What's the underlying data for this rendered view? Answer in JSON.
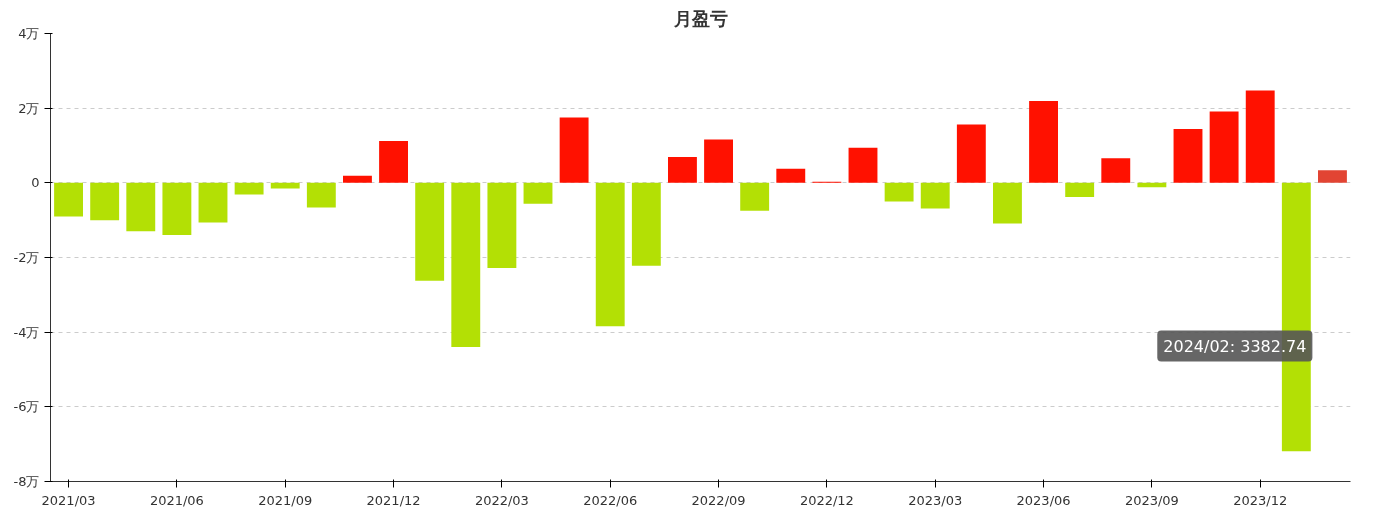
{
  "chart_data": {
    "type": "bar",
    "title": "月盈亏",
    "categories": [
      "2021/03",
      null,
      null,
      "2021/06",
      null,
      null,
      "2021/09",
      null,
      null,
      "2021/12",
      null,
      null,
      "2022/03",
      null,
      null,
      "2022/06",
      null,
      null,
      "2022/09",
      null,
      null,
      "2022/12",
      null,
      null,
      "2023/03",
      null,
      null,
      "2023/06",
      null,
      null,
      "2023/09",
      null,
      null,
      "2023/12",
      null,
      null
    ],
    "values": [
      -0.9,
      -1.0,
      -1.3,
      -1.4,
      -1.06,
      -0.31,
      -0.15,
      -0.66,
      0.19,
      1.12,
      -2.62,
      -4.4,
      -2.28,
      -0.56,
      1.75,
      -3.84,
      -2.22,
      0.69,
      1.16,
      -0.75,
      0.38,
      0.03,
      0.94,
      -0.5,
      -0.69,
      1.56,
      -1.09,
      2.19,
      -0.38,
      0.66,
      -0.12,
      1.44,
      1.91,
      2.47,
      -7.19,
      0.34
    ],
    "colors": [
      "#b3e005",
      "#b3e005",
      "#b3e005",
      "#b3e005",
      "#b3e005",
      "#b3e005",
      "#b3e005",
      "#b3e005",
      "#ff1100",
      "#ff1100",
      "#b3e005",
      "#b3e005",
      "#b3e005",
      "#b3e005",
      "#ff1100",
      "#b3e005",
      "#b3e005",
      "#ff1100",
      "#ff1100",
      "#b3e005",
      "#ff1100",
      "#ff1100",
      "#ff1100",
      "#b3e005",
      "#b3e005",
      "#ff1100",
      "#b3e005",
      "#ff1100",
      "#b3e005",
      "#ff1100",
      "#b3e005",
      "#ff1100",
      "#ff1100",
      "#ff1100",
      "#b3e005",
      "#e24433"
    ],
    "ylim": [
      -8,
      4
    ],
    "yticks": [
      {
        "value": 4,
        "label": "4万"
      },
      {
        "value": 2,
        "label": "2万"
      },
      0,
      {
        "value": -2,
        "label": "-2万"
      },
      {
        "value": -4,
        "label": "-4万"
      },
      {
        "value": -6,
        "label": "-6万"
      },
      {
        "value": -8,
        "label": "-8万"
      }
    ],
    "grid": "y",
    "annotations": [
      "2024/02: 3382.74"
    ]
  }
}
